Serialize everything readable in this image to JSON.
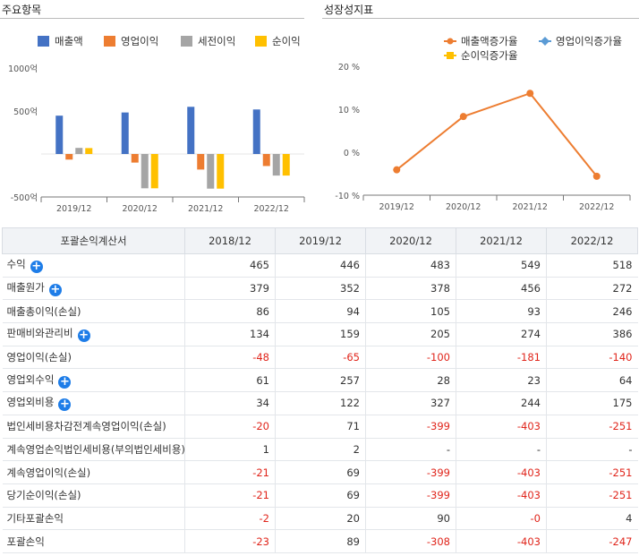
{
  "left_title": "주요항목",
  "right_title": "성장성지표",
  "chart_data": [
    {
      "type": "bar",
      "categories": [
        "2019/12",
        "2020/12",
        "2021/12",
        "2022/12"
      ],
      "series": [
        {
          "name": "매출액",
          "color": "#4472c4",
          "values": [
            446,
            483,
            549,
            518
          ]
        },
        {
          "name": "영업이익",
          "color": "#ed7d31",
          "values": [
            -65,
            -100,
            -181,
            -140
          ]
        },
        {
          "name": "세전이익",
          "color": "#a5a5a5",
          "values": [
            71,
            -399,
            -403,
            -251
          ]
        },
        {
          "name": "순이익",
          "color": "#ffc000",
          "values": [
            69,
            -399,
            -403,
            -251
          ]
        }
      ],
      "ylim": [
        -500,
        1000
      ],
      "ytick_labels": [
        "1000억",
        "500억",
        "-500억"
      ],
      "ytick_values": [
        1000,
        500,
        -500
      ],
      "legend": "top"
    },
    {
      "type": "line",
      "categories": [
        "2019/12",
        "2020/12",
        "2021/12",
        "2022/12"
      ],
      "series": [
        {
          "name": "매출액증가율",
          "color": "#ed7d31",
          "values": [
            -4.1,
            8.3,
            13.7,
            -5.6
          ]
        },
        {
          "name": "영업이익증가율",
          "color": "#5b9bd5",
          "values": [
            null,
            null,
            null,
            null
          ]
        },
        {
          "name": "순이익증가율",
          "color": "#ffc000",
          "values": [
            null,
            null,
            null,
            null
          ]
        }
      ],
      "ylim": [
        -10,
        20
      ],
      "ytick_labels": [
        "20 %",
        "10 %",
        "0 %",
        "-10 %"
      ],
      "ytick_values": [
        20,
        10,
        0,
        -10
      ],
      "legend": "top"
    }
  ],
  "table": {
    "header": [
      "포괄손익계산서",
      "2018/12",
      "2019/12",
      "2020/12",
      "2021/12",
      "2022/12"
    ],
    "rows": [
      {
        "label": "수익",
        "expand": true,
        "values": [
          "465",
          "446",
          "483",
          "549",
          "518"
        ]
      },
      {
        "label": "매출원가",
        "expand": true,
        "values": [
          "379",
          "352",
          "378",
          "456",
          "272"
        ]
      },
      {
        "label": "매출총이익(손실)",
        "expand": false,
        "values": [
          "86",
          "94",
          "105",
          "93",
          "246"
        ]
      },
      {
        "label": "판매비와관리비",
        "expand": true,
        "values": [
          "134",
          "159",
          "205",
          "274",
          "386"
        ]
      },
      {
        "label": "영업이익(손실)",
        "expand": false,
        "values": [
          "-48",
          "-65",
          "-100",
          "-181",
          "-140"
        ]
      },
      {
        "label": "영업외수익",
        "expand": true,
        "values": [
          "61",
          "257",
          "28",
          "23",
          "64"
        ]
      },
      {
        "label": "영업외비용",
        "expand": true,
        "values": [
          "34",
          "122",
          "327",
          "244",
          "175"
        ]
      },
      {
        "label": "법인세비용차감전계속영업이익(손실)",
        "expand": false,
        "values": [
          "-20",
          "71",
          "-399",
          "-403",
          "-251"
        ]
      },
      {
        "label": "계속영업손익법인세비용(부의법인세비용)",
        "expand": false,
        "values": [
          "1",
          "2",
          "-",
          "-",
          "-"
        ]
      },
      {
        "label": "계속영업이익(손실)",
        "expand": false,
        "values": [
          "-21",
          "69",
          "-399",
          "-403",
          "-251"
        ]
      },
      {
        "label": "당기순이익(손실)",
        "expand": false,
        "values": [
          "-21",
          "69",
          "-399",
          "-403",
          "-251"
        ]
      },
      {
        "label": "기타포괄손익",
        "expand": false,
        "values": [
          "-2",
          "20",
          "90",
          "-0",
          "4"
        ]
      },
      {
        "label": "포괄손익",
        "expand": false,
        "values": [
          "-23",
          "89",
          "-308",
          "-403",
          "-247"
        ]
      }
    ]
  }
}
